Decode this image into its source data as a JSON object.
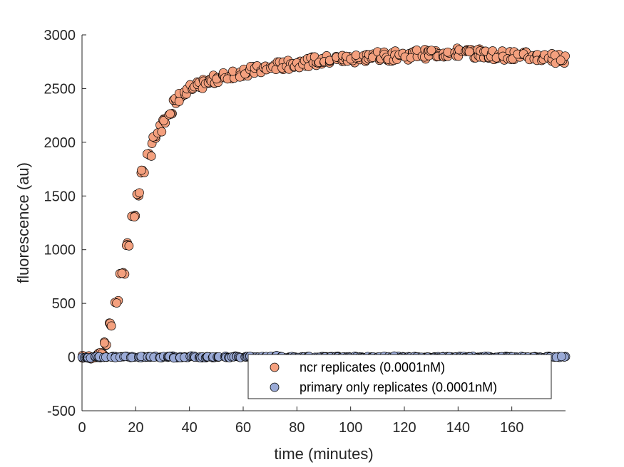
{
  "chart_data": {
    "type": "scatter",
    "title": "",
    "xlabel": "time (minutes)",
    "ylabel": "fluorescence (au)",
    "xlim": [
      0,
      180
    ],
    "ylim": [
      -500,
      3000
    ],
    "xticks": [
      0,
      20,
      40,
      60,
      80,
      100,
      120,
      140,
      160
    ],
    "yticks": [
      -500,
      0,
      500,
      1000,
      1500,
      2000,
      2500,
      3000
    ],
    "xtick_labels": [
      "0",
      "20",
      "40",
      "60",
      "80",
      "100",
      "120",
      "140",
      "160"
    ],
    "ytick_labels": [
      "-500",
      "0",
      "500",
      "1000",
      "1500",
      "2000",
      "2500",
      "3000"
    ],
    "grid": false,
    "legend_position": "bottom-right",
    "series": [
      {
        "name": "ncr replicates (0.0001nM)",
        "color": "#F4A07E",
        "edge_color": "#000000",
        "x": [
          0,
          2,
          4,
          6,
          8,
          10,
          12,
          14,
          16,
          18,
          20,
          22,
          24,
          26,
          28,
          30,
          32,
          34,
          36,
          38,
          40,
          42,
          44,
          46,
          48,
          50,
          52,
          54,
          56,
          58,
          60,
          62,
          64,
          66,
          68,
          70,
          72,
          74,
          76,
          78,
          80,
          82,
          84,
          86,
          88,
          90,
          92,
          94,
          96,
          98,
          100,
          102,
          104,
          106,
          108,
          110,
          112,
          114,
          116,
          118,
          120,
          122,
          124,
          126,
          128,
          130,
          132,
          134,
          136,
          138,
          140,
          142,
          144,
          146,
          148,
          150,
          152,
          154,
          156,
          158,
          160,
          162,
          164,
          166,
          168,
          170,
          172,
          174,
          176,
          178
        ],
        "y": [
          0,
          0,
          10,
          40,
          120,
          300,
          520,
          780,
          1050,
          1300,
          1520,
          1720,
          1880,
          2020,
          2130,
          2220,
          2300,
          2370,
          2420,
          2460,
          2500,
          2520,
          2540,
          2560,
          2580,
          2600,
          2610,
          2620,
          2640,
          2650,
          2660,
          2665,
          2670,
          2680,
          2690,
          2700,
          2710,
          2715,
          2720,
          2730,
          2740,
          2745,
          2750,
          2755,
          2760,
          2765,
          2770,
          2770,
          2775,
          2780,
          2780,
          2785,
          2790,
          2790,
          2795,
          2800,
          2800,
          2800,
          2805,
          2810,
          2810,
          2815,
          2820,
          2820,
          2825,
          2830,
          2830,
          2830,
          2830,
          2835,
          2835,
          2830,
          2830,
          2825,
          2820,
          2820,
          2815,
          2815,
          2810,
          2810,
          2805,
          2800,
          2800,
          2800,
          2795,
          2790,
          2790,
          2785,
          2780,
          2780
        ]
      },
      {
        "name": "primary only replicates (0.0001nM)",
        "color": "#9AAAD6",
        "edge_color": "#000000",
        "x": [
          0,
          2,
          4,
          6,
          8,
          10,
          12,
          14,
          16,
          18,
          20,
          22,
          24,
          26,
          28,
          30,
          32,
          34,
          36,
          38,
          40,
          42,
          44,
          46,
          48,
          50,
          52,
          54,
          56,
          58,
          60,
          62,
          64,
          66,
          68,
          70,
          72,
          74,
          76,
          78,
          80,
          82,
          84,
          86,
          88,
          90,
          92,
          94,
          96,
          98,
          100,
          102,
          104,
          106,
          108,
          110,
          112,
          114,
          116,
          118,
          120,
          122,
          124,
          126,
          128,
          130,
          132,
          134,
          136,
          138,
          140,
          142,
          144,
          146,
          148,
          150,
          152,
          154,
          156,
          158,
          160,
          162,
          164,
          166,
          168,
          170,
          172,
          174,
          176,
          178
        ],
        "y": [
          0,
          -5,
          5,
          0,
          -3,
          2,
          0,
          -2,
          3,
          0,
          -4,
          2,
          0,
          3,
          -2,
          0,
          4,
          -3,
          0,
          2,
          5,
          0,
          -3,
          2,
          0,
          -2,
          3,
          0,
          4,
          -2,
          0,
          3,
          -3,
          0,
          2,
          5,
          10,
          0,
          -2,
          3,
          0,
          -3,
          2,
          0,
          4,
          -2,
          0,
          3,
          -3,
          0,
          2,
          0,
          -2,
          3,
          0,
          -3,
          2,
          0,
          4,
          -2,
          0,
          3,
          -3,
          0,
          2,
          0,
          -2,
          3,
          0,
          -3,
          2,
          0,
          4,
          -2,
          0,
          3,
          -3,
          0,
          2,
          0,
          -2,
          3,
          0,
          -3,
          2,
          0,
          4,
          -2,
          0,
          3
        ]
      }
    ]
  }
}
